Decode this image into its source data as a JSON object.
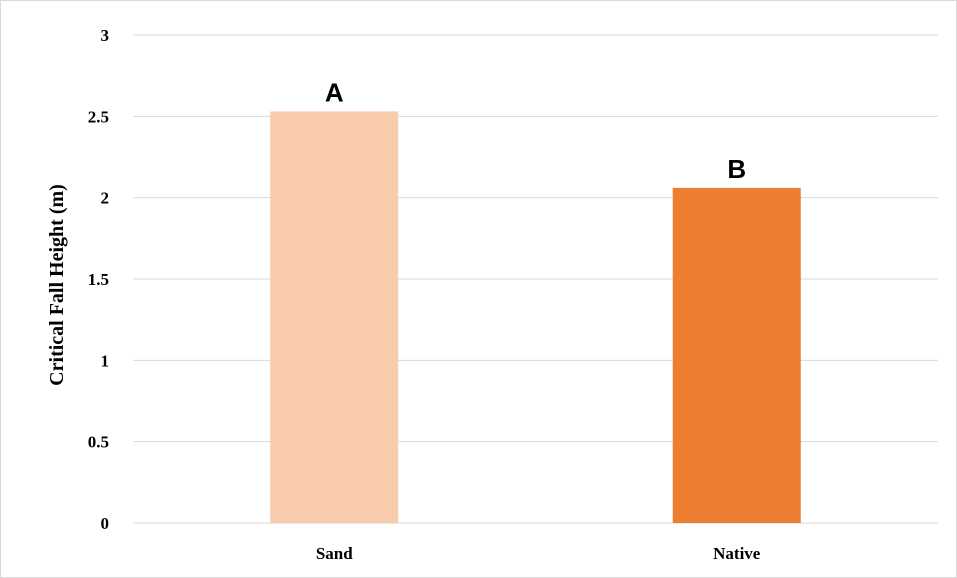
{
  "chart_data": {
    "type": "bar",
    "categories": [
      "Sand",
      "Native"
    ],
    "values": [
      2.53,
      2.06
    ],
    "annotations": [
      "A",
      "B"
    ],
    "colors": [
      "#f8cbad",
      "#ed7d31"
    ],
    "title": "",
    "xlabel": "",
    "ylabel": "Critical Fall Height (m)",
    "ylim": [
      0,
      3
    ],
    "yticks": [
      "0",
      "0.5",
      "1",
      "1.5",
      "2",
      "2.5",
      "3"
    ],
    "ytick_values": [
      0,
      0.5,
      1,
      1.5,
      2,
      2.5,
      3
    ],
    "grid": true,
    "gridline_color": "#d9d9d9",
    "legend": "none"
  }
}
